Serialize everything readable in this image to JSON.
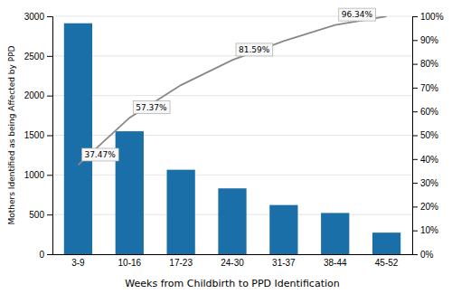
{
  "chart_data": {
    "type": "bar",
    "xlabel": "Weeks from Childbirth to PPD Identification",
    "ylabel": "Mothers Identified as being Affected by PPD",
    "categories": [
      "3-9",
      "10-16",
      "17-23",
      "24-30",
      "31-37",
      "38-44",
      "45-52"
    ],
    "series": [
      {
        "type": "bar",
        "color": "#1a6fa8",
        "values": [
          2912,
          1550,
          1065,
          830,
          620,
          520,
          272
        ]
      },
      {
        "type": "line",
        "axis": "y2",
        "color": "#888888",
        "values": [
          37.47,
          57.37,
          71.07,
          81.59,
          89.57,
          96.34,
          100.0
        ],
        "value_labels": [
          "37.47%",
          "57.37%",
          null,
          "81.59%",
          null,
          "96.34%",
          null
        ]
      }
    ],
    "ylim": [
      0,
      3000
    ],
    "yticks": [
      0,
      500,
      1000,
      1500,
      2000,
      2500,
      3000
    ],
    "y2lim": [
      0,
      100
    ],
    "y2ticks": [
      {
        "value": 0,
        "label": "0%"
      },
      {
        "value": 10,
        "label": "10%"
      },
      {
        "value": 20,
        "label": "20%"
      },
      {
        "value": 30,
        "label": "30%"
      },
      {
        "value": 40,
        "label": "40%"
      },
      {
        "value": 50,
        "label": "50%"
      },
      {
        "value": 60,
        "label": "60%"
      },
      {
        "value": 70,
        "label": "70%"
      },
      {
        "value": 80,
        "label": "80%"
      },
      {
        "value": 90,
        "label": "90%"
      },
      {
        "value": 100,
        "label": "100%"
      }
    ],
    "grid": true
  }
}
